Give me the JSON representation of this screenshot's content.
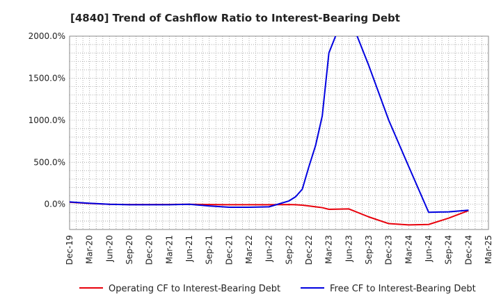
{
  "chart_data": {
    "type": "line",
    "title": "[4840]  Trend of Cashflow Ratio to Interest-Bearing Debt",
    "xlabel": "",
    "ylabel": "",
    "x": [
      "Dec-19",
      "Mar-20",
      "Jun-20",
      "Sep-20",
      "Dec-20",
      "Mar-21",
      "Jun-21",
      "Sep-21",
      "Dec-21",
      "Mar-22",
      "Jun-22",
      "Sep-22",
      "Dec-22",
      "Mar-23",
      "Jun-23",
      "Sep-23",
      "Dec-23",
      "Mar-24",
      "Jun-24",
      "Sep-24",
      "Dec-24",
      "Mar-25"
    ],
    "x_tick_labels": [
      "Dec-19",
      "Mar-20",
      "Jun-20",
      "Sep-20",
      "Dec-20",
      "Mar-21",
      "Jun-21",
      "Sep-21",
      "Dec-21",
      "Mar-22",
      "Jun-22",
      "Sep-22",
      "Dec-22",
      "Mar-23",
      "Jun-23",
      "Sep-23",
      "Dec-23",
      "Mar-24",
      "Jun-24",
      "Sep-24",
      "Dec-24",
      "Mar-25"
    ],
    "y_tick_labels": [
      "2000.0%",
      "1500.0%",
      "1000.0%",
      "500.0%",
      "0.0%"
    ],
    "y_ticks": [
      2000,
      1500,
      1000,
      500,
      0
    ],
    "ylim": [
      -300,
      2000
    ],
    "grid": true,
    "legend_position": "bottom",
    "series": [
      {
        "name": "Operating CF to Interest-Bearing Debt",
        "color": "#e8000b",
        "x": [
          "Dec-19",
          "Mar-20",
          "Jun-20",
          "Sep-20",
          "Dec-20",
          "Mar-21",
          "Jun-21",
          "Sep-21",
          "Dec-21",
          "Mar-22",
          "Jun-22",
          "Sep-22",
          "Oct-22",
          "Nov-22",
          "Dec-22",
          "Jan-23",
          "Feb-23",
          "Mar-23",
          "Jun-23",
          "Sep-23",
          "Dec-23",
          "Mar-24",
          "Jun-24",
          "Sep-24",
          "Dec-24"
        ],
        "values": [
          25,
          10,
          0,
          -3,
          -3,
          -2,
          0,
          -3,
          -5,
          -5,
          -5,
          -3,
          -5,
          -10,
          -20,
          -30,
          -40,
          -60,
          -55,
          -150,
          -230,
          -245,
          -240,
          -165,
          -75
        ]
      },
      {
        "name": "Free CF to Interest-Bearing Debt",
        "color": "#0000e0",
        "x": [
          "Dec-19",
          "Mar-20",
          "Jun-20",
          "Sep-20",
          "Dec-20",
          "Mar-21",
          "Jun-21",
          "Sep-21",
          "Dec-21",
          "Mar-22",
          "Jun-22",
          "Sep-22",
          "Oct-22",
          "Nov-22",
          "Dec-22",
          "Jan-23",
          "Feb-23",
          "Mar-23",
          "Apr-23",
          "May-23",
          "Jun-23",
          "Jul-23",
          "Sep-23",
          "Dec-23",
          "Mar-24",
          "Jun-24",
          "Sep-24",
          "Dec-24"
        ],
        "values": [
          28,
          12,
          0,
          -5,
          -5,
          -5,
          0,
          -20,
          -35,
          -35,
          -30,
          40,
          90,
          180,
          450,
          700,
          1050,
          1800,
          2000,
          2150,
          2200,
          2050,
          1650,
          1000,
          450,
          -95,
          -90,
          -70
        ]
      }
    ]
  }
}
